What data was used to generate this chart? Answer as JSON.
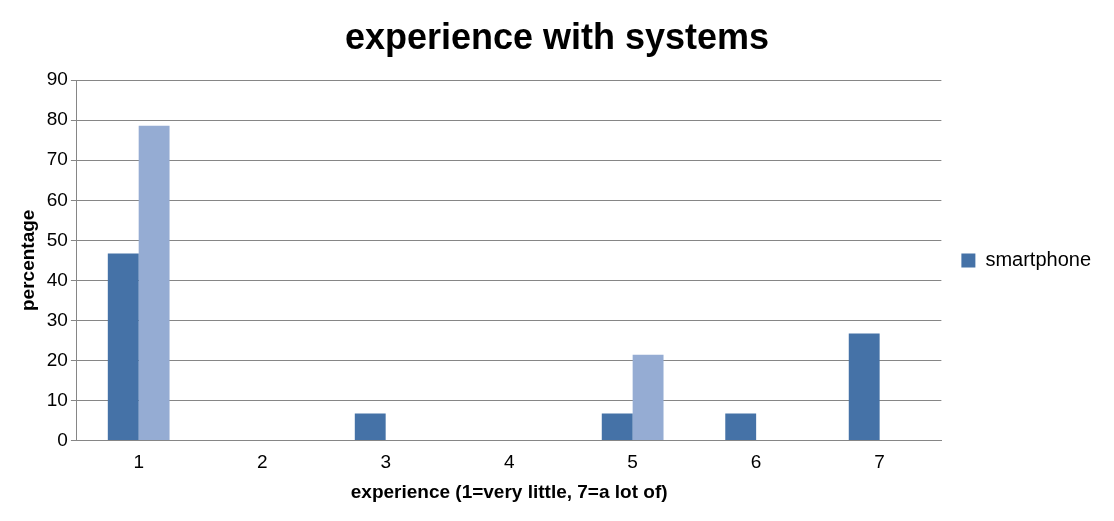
{
  "chart_data": {
    "type": "bar",
    "title": "experience with systems",
    "xlabel": "experience (1=very little, 7=a lot of)",
    "ylabel": "percentage",
    "categories": [
      "1",
      "2",
      "3",
      "4",
      "5",
      "6",
      "7"
    ],
    "series": [
      {
        "name": "smartphone",
        "color": "#4572a7",
        "values": [
          46.7,
          0,
          6.7,
          0,
          6.7,
          6.7,
          26.7
        ]
      },
      {
        "color": "#95acd3",
        "values": [
          78.6,
          0,
          0,
          0,
          21.4,
          0,
          0
        ]
      }
    ],
    "ylim": [
      0,
      90
    ],
    "yticks": [
      0,
      10,
      20,
      30,
      40,
      50,
      60,
      70,
      80,
      90
    ],
    "grid": "y",
    "legend": "right"
  }
}
